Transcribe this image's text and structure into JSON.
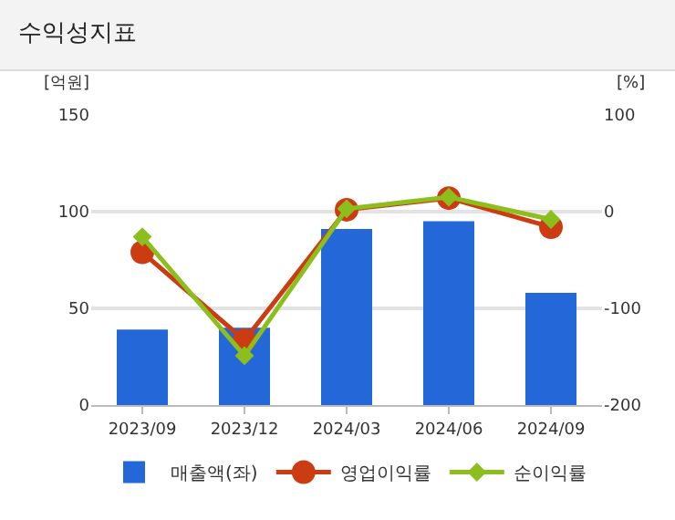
{
  "chart_data": {
    "type": "bar",
    "title": "수익성지표",
    "ylabel": "[억원]",
    "y2label": "[%]",
    "categories": [
      "2023/09",
      "2023/12",
      "2024/03",
      "2024/06",
      "2024/09"
    ],
    "series": [
      {
        "name": "매출액(좌)",
        "color": "#2467d9",
        "values": [
          39,
          40,
          91,
          95,
          58
        ]
      },
      {
        "name": "영업이익률",
        "type": "line",
        "axis": "y2",
        "color": "#cc3c12",
        "marker": "circle",
        "values": [
          -42,
          -133,
          2,
          14,
          -16
        ]
      },
      {
        "name": "순이익률",
        "type": "line",
        "axis": "y2",
        "color": "#8cbf1e",
        "marker": "diamond",
        "values": [
          -26,
          -149,
          3,
          15,
          -8
        ]
      }
    ],
    "ylim": [
      0,
      150
    ],
    "yticks": [
      0,
      50,
      100,
      150
    ],
    "y2lim": [
      -200,
      100
    ],
    "y2ticks": [
      -200,
      -100,
      0,
      100
    ],
    "grid": "y",
    "legend": "bottom"
  }
}
